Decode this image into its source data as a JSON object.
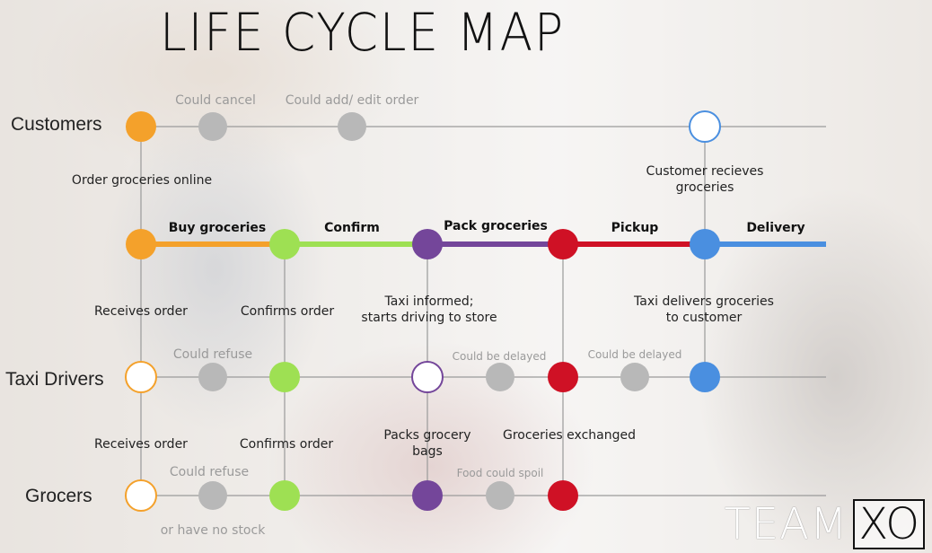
{
  "title": "LIFE CYCLE MAP",
  "lanes": {
    "customers": "Customers",
    "taxi_drivers": "Taxi Drivers",
    "grocers": "Grocers"
  },
  "stages": {
    "buy": "Buy groceries",
    "confirm": "Confirm",
    "pack": "Pack groceries",
    "pickup": "Pickup",
    "delivery": "Delivery"
  },
  "customer_notes": {
    "could_cancel": "Could cancel",
    "could_add_edit": "Could add/ edit order",
    "order_online": "Order groceries online",
    "receives_line1": "Customer recieves",
    "receives_line2": "groceries"
  },
  "taxi_notes": {
    "receives_order": "Receives order",
    "confirms_order": "Confirms order",
    "informed_line1": "Taxi informed;",
    "informed_line2": "starts driving to store",
    "delivers_line1": "Taxi delivers groceries",
    "delivers_line2": "to customer",
    "could_refuse": "Could refuse",
    "delayed_1": "Could be delayed",
    "delayed_2": "Could be delayed"
  },
  "grocer_notes": {
    "receives_order": "Receives order",
    "confirms_order": "Confirms order",
    "packs_line1": "Packs grocery",
    "packs_line2": "bags",
    "exchanged": "Groceries exchanged",
    "could_refuse": "Could refuse",
    "no_stock": "or have no stock",
    "spoil": "Food could spoil"
  },
  "logo": {
    "team": "TEAM",
    "xo": "XO"
  },
  "colors": {
    "buy": "#f4a12b",
    "confirm": "#9ee053",
    "pack": "#74469a",
    "pickup": "#cf1125",
    "delivery": "#4a8fe0",
    "optional": "#b8b8b8"
  }
}
